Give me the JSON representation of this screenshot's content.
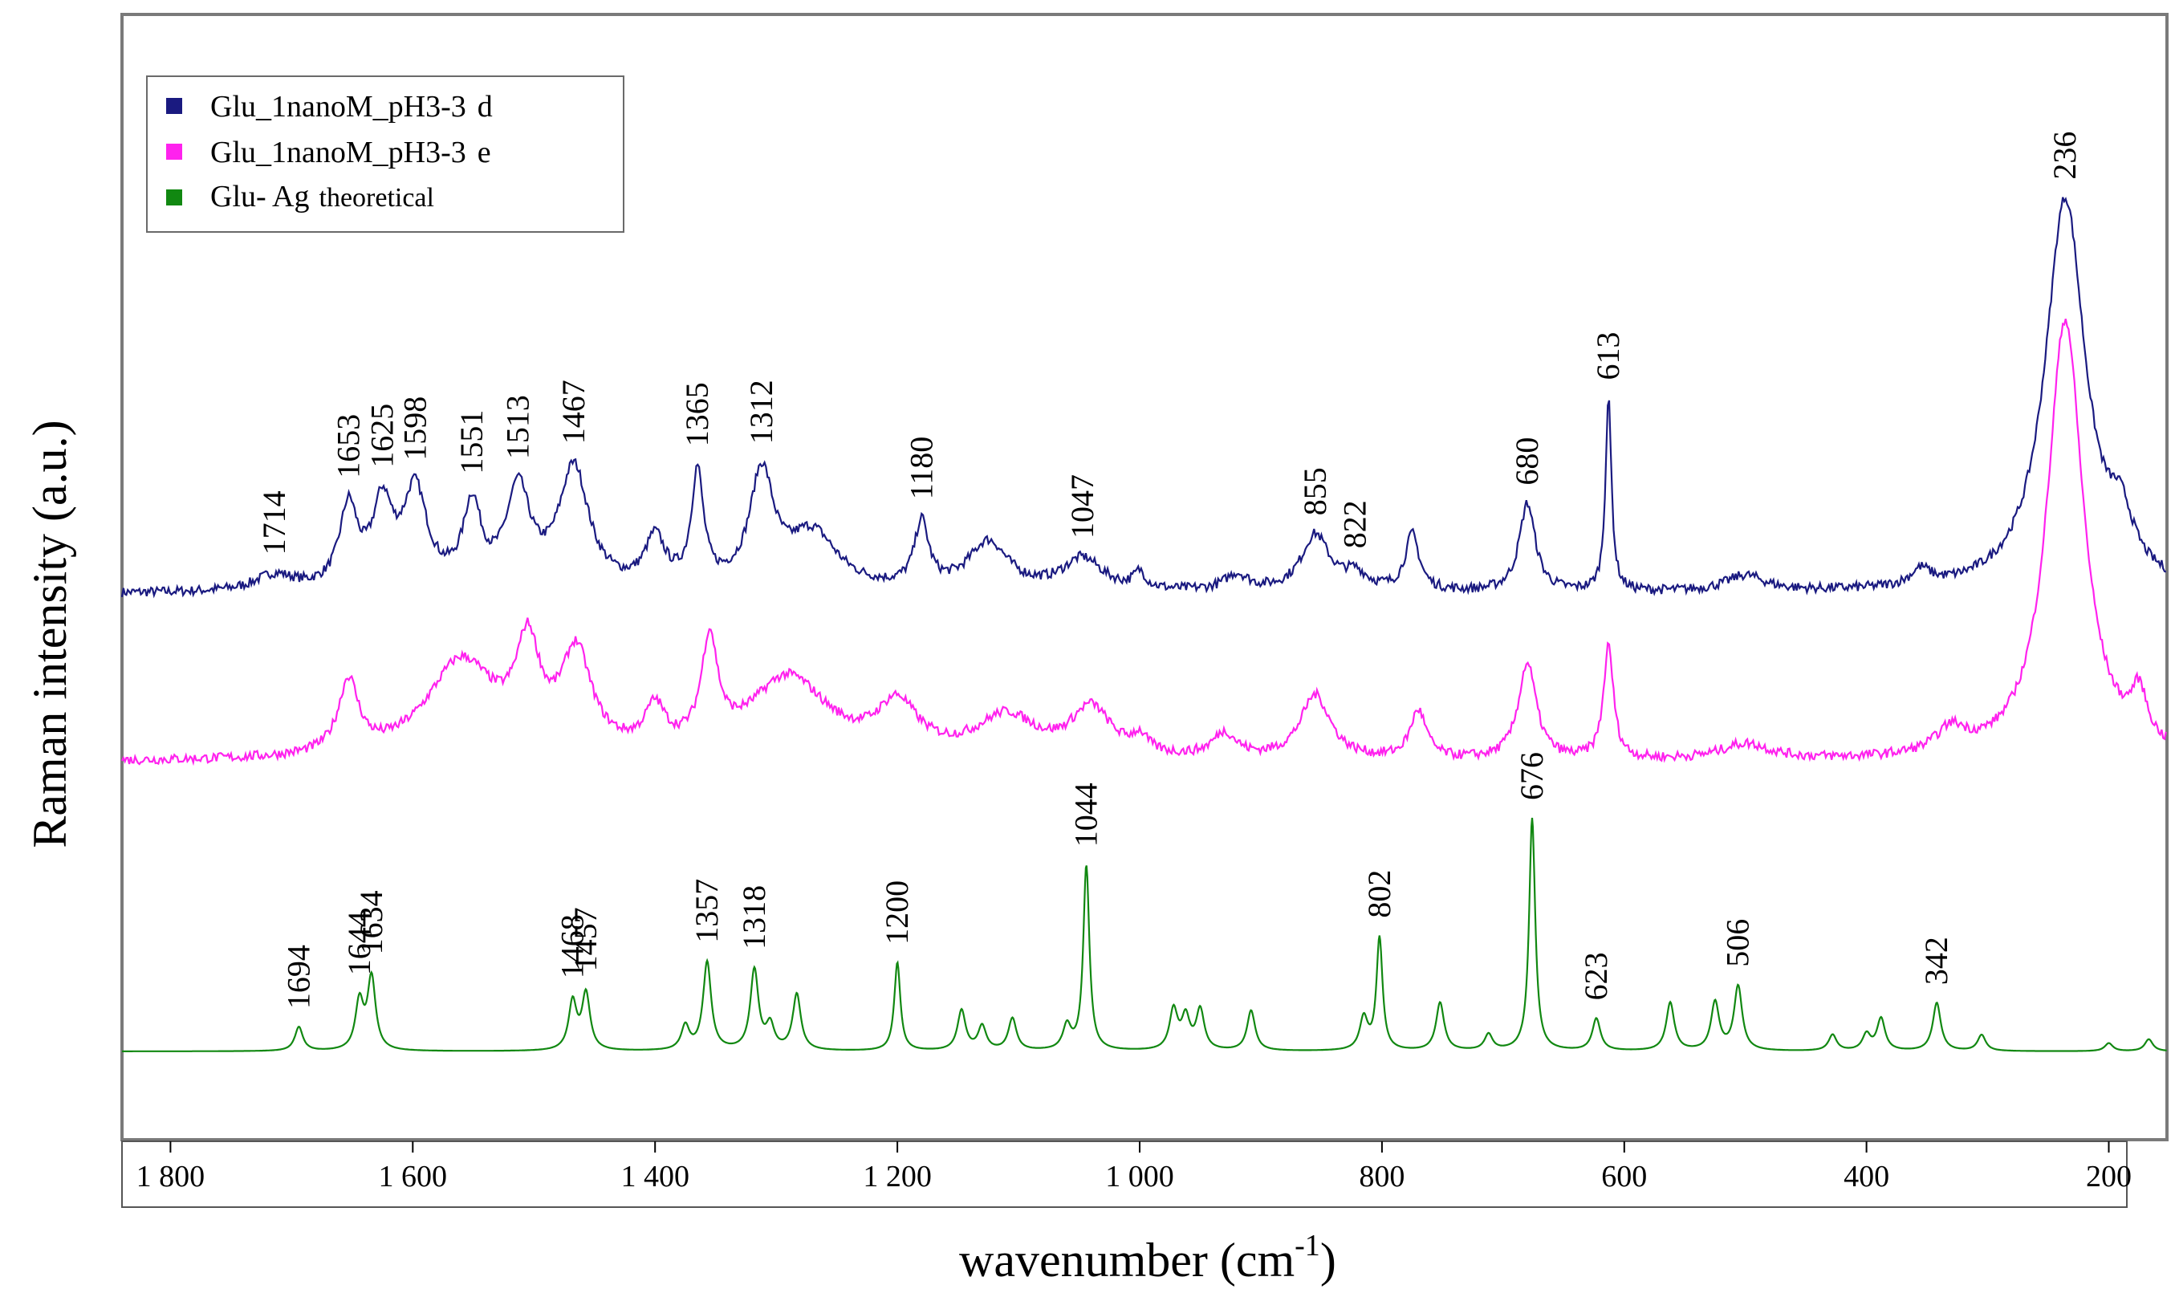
{
  "chart_data": {
    "type": "line",
    "title": "",
    "xlabel_base": "wavenumber (cm",
    "xlabel_sup": "-1",
    "xlabel_close": ")",
    "ylabel": "Raman intensity (a.u.)",
    "xlim": [
      1840,
      152
    ],
    "x_reversed": true,
    "x_ticks": [
      {
        "value": 1800,
        "label": "1 800"
      },
      {
        "value": 1600,
        "label": "1 600"
      },
      {
        "value": 1400,
        "label": "1 400"
      },
      {
        "value": 1200,
        "label": "1 200"
      },
      {
        "value": 1000,
        "label": "1 000"
      },
      {
        "value": 800,
        "label": "800"
      },
      {
        "value": 600,
        "label": "600"
      },
      {
        "value": 400,
        "label": "400"
      },
      {
        "value": 200,
        "label": "200"
      }
    ],
    "y_ticks_shown": false,
    "legend_position": "top-left",
    "series": [
      {
        "name": "Glu_1nanoM_pH3-3",
        "name_suffix": "d",
        "color": "#1a1a80",
        "baseline": 0.3,
        "noise": 0.006,
        "peaks": [
          {
            "x": 1714,
            "h": 0.02,
            "w": 20
          },
          {
            "x": 1653,
            "h": 0.1,
            "w": 9
          },
          {
            "x": 1625,
            "h": 0.1,
            "w": 10
          },
          {
            "x": 1598,
            "h": 0.12,
            "w": 12
          },
          {
            "x": 1551,
            "h": 0.1,
            "w": 9
          },
          {
            "x": 1513,
            "h": 0.12,
            "w": 12
          },
          {
            "x": 1467,
            "h": 0.15,
            "w": 15
          },
          {
            "x": 1400,
            "h": 0.06,
            "w": 10
          },
          {
            "x": 1365,
            "h": 0.14,
            "w": 6
          },
          {
            "x": 1312,
            "h": 0.14,
            "w": 12
          },
          {
            "x": 1270,
            "h": 0.07,
            "w": 25
          },
          {
            "x": 1180,
            "h": 0.08,
            "w": 7
          },
          {
            "x": 1125,
            "h": 0.06,
            "w": 20
          },
          {
            "x": 1047,
            "h": 0.04,
            "w": 20
          },
          {
            "x": 1000,
            "h": 0.02,
            "w": 6
          },
          {
            "x": 920,
            "h": 0.02,
            "w": 12
          },
          {
            "x": 855,
            "h": 0.07,
            "w": 14
          },
          {
            "x": 822,
            "h": 0.02,
            "w": 12
          },
          {
            "x": 775,
            "h": 0.07,
            "w": 7
          },
          {
            "x": 680,
            "h": 0.11,
            "w": 8
          },
          {
            "x": 613,
            "h": 0.24,
            "w": 3
          },
          {
            "x": 500,
            "h": 0.02,
            "w": 20
          },
          {
            "x": 355,
            "h": 0.02,
            "w": 10
          },
          {
            "x": 236,
            "h": 0.49,
            "w": 20
          },
          {
            "x": 190,
            "h": 0.06,
            "w": 12
          }
        ],
        "peak_labels": [
          "1714",
          "1653",
          "1625",
          "1598",
          "1551",
          "1513",
          "1467",
          "1365",
          "1312",
          "1180",
          "1047",
          "855",
          "822",
          "680",
          "613",
          "236"
        ]
      },
      {
        "name": "Glu_1nanoM_pH3-3",
        "name_suffix": "e",
        "color": "#ff22ee",
        "baseline": 0.09,
        "noise": 0.006,
        "peaks": [
          {
            "x": 1653,
            "h": 0.09,
            "w": 10
          },
          {
            "x": 1560,
            "h": 0.12,
            "w": 35
          },
          {
            "x": 1505,
            "h": 0.12,
            "w": 12
          },
          {
            "x": 1465,
            "h": 0.12,
            "w": 15
          },
          {
            "x": 1400,
            "h": 0.05,
            "w": 10
          },
          {
            "x": 1355,
            "h": 0.13,
            "w": 8
          },
          {
            "x": 1290,
            "h": 0.1,
            "w": 40
          },
          {
            "x": 1200,
            "h": 0.06,
            "w": 20
          },
          {
            "x": 1110,
            "h": 0.05,
            "w": 30
          },
          {
            "x": 1040,
            "h": 0.06,
            "w": 20
          },
          {
            "x": 1000,
            "h": 0.02,
            "w": 8
          },
          {
            "x": 930,
            "h": 0.03,
            "w": 12
          },
          {
            "x": 855,
            "h": 0.08,
            "w": 15
          },
          {
            "x": 770,
            "h": 0.06,
            "w": 8
          },
          {
            "x": 680,
            "h": 0.12,
            "w": 9
          },
          {
            "x": 613,
            "h": 0.14,
            "w": 5
          },
          {
            "x": 500,
            "h": 0.02,
            "w": 25
          },
          {
            "x": 330,
            "h": 0.03,
            "w": 15
          },
          {
            "x": 236,
            "h": 0.55,
            "w": 18
          },
          {
            "x": 175,
            "h": 0.06,
            "w": 8
          }
        ],
        "peak_labels": []
      },
      {
        "name": "Glu- Ag",
        "name_suffix": "theoretical",
        "color": "#118811",
        "baseline": -0.27,
        "noise": 0,
        "peaks": [
          {
            "x": 1694,
            "h": 0.03,
            "w": 4
          },
          {
            "x": 1644,
            "h": 0.06,
            "w": 4
          },
          {
            "x": 1634,
            "h": 0.09,
            "w": 4
          },
          {
            "x": 1468,
            "h": 0.06,
            "w": 4
          },
          {
            "x": 1457,
            "h": 0.07,
            "w": 4
          },
          {
            "x": 1375,
            "h": 0.03,
            "w": 4
          },
          {
            "x": 1357,
            "h": 0.11,
            "w": 4
          },
          {
            "x": 1318,
            "h": 0.1,
            "w": 4
          },
          {
            "x": 1305,
            "h": 0.03,
            "w": 4
          },
          {
            "x": 1283,
            "h": 0.07,
            "w": 4
          },
          {
            "x": 1200,
            "h": 0.11,
            "w": 3
          },
          {
            "x": 1147,
            "h": 0.05,
            "w": 4
          },
          {
            "x": 1130,
            "h": 0.03,
            "w": 4
          },
          {
            "x": 1105,
            "h": 0.04,
            "w": 4
          },
          {
            "x": 1060,
            "h": 0.03,
            "w": 4
          },
          {
            "x": 1044,
            "h": 0.23,
            "w": 3
          },
          {
            "x": 972,
            "h": 0.05,
            "w": 4
          },
          {
            "x": 962,
            "h": 0.04,
            "w": 4
          },
          {
            "x": 950,
            "h": 0.05,
            "w": 4
          },
          {
            "x": 908,
            "h": 0.05,
            "w": 4
          },
          {
            "x": 815,
            "h": 0.04,
            "w": 4
          },
          {
            "x": 802,
            "h": 0.14,
            "w": 3
          },
          {
            "x": 752,
            "h": 0.06,
            "w": 4
          },
          {
            "x": 712,
            "h": 0.02,
            "w": 4
          },
          {
            "x": 676,
            "h": 0.29,
            "w": 3
          },
          {
            "x": 623,
            "h": 0.04,
            "w": 4
          },
          {
            "x": 562,
            "h": 0.06,
            "w": 4
          },
          {
            "x": 525,
            "h": 0.06,
            "w": 4
          },
          {
            "x": 506,
            "h": 0.08,
            "w": 4
          },
          {
            "x": 428,
            "h": 0.02,
            "w": 4
          },
          {
            "x": 400,
            "h": 0.02,
            "w": 4
          },
          {
            "x": 388,
            "h": 0.04,
            "w": 4
          },
          {
            "x": 342,
            "h": 0.06,
            "w": 4
          },
          {
            "x": 305,
            "h": 0.02,
            "w": 4
          },
          {
            "x": 200,
            "h": 0.01,
            "w": 4
          },
          {
            "x": 167,
            "h": 0.015,
            "w": 4
          }
        ],
        "peak_labels": [
          "1694",
          "1644",
          "1634",
          "1468",
          "1457",
          "1357",
          "1318",
          "1200",
          "1044",
          "802",
          "676",
          "623",
          "506",
          "342"
        ]
      }
    ]
  }
}
